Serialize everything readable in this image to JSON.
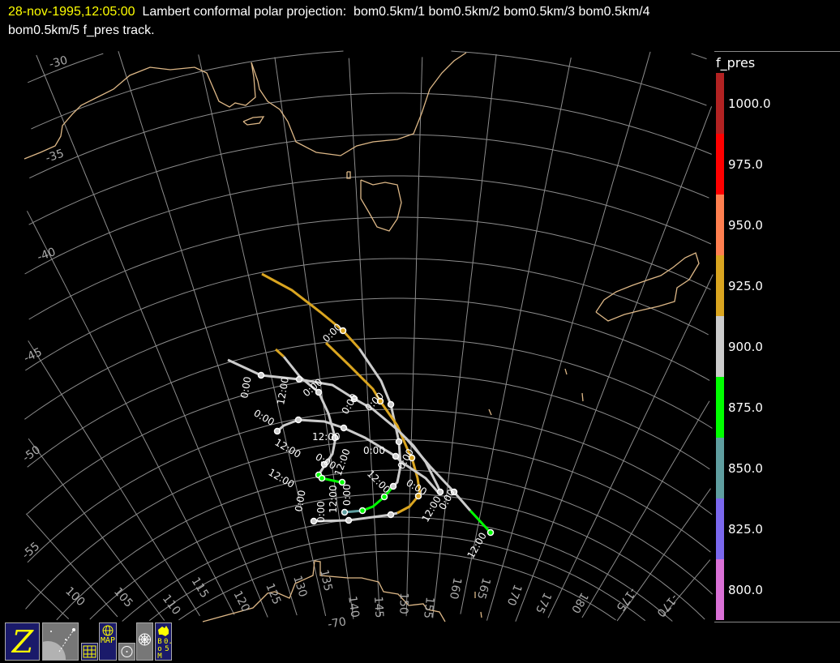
{
  "header": {
    "timestamp": "28-nov-1995,12:05:00",
    "title_line1": "  Lambert conformal polar projection:  bom0.5km/1 bom0.5km/2 bom0.5km/3 bom0.5km/4",
    "title_line2": "bom0.5km/5 f_pres track."
  },
  "legend": {
    "title": "f_pres",
    "levels": [
      {
        "label": "1000.0",
        "color": "#b22222"
      },
      {
        "label": "975.0",
        "color": "#ff0000"
      },
      {
        "label": "950.0",
        "color": "#ff7f50"
      },
      {
        "label": "925.0",
        "color": "#daa520"
      },
      {
        "label": "900.0",
        "color": "#cccccc"
      },
      {
        "label": "875.0",
        "color": "#00ff00"
      },
      {
        "label": "850.0",
        "color": "#5f9ea0"
      },
      {
        "label": "825.0",
        "color": "#7b68ee"
      },
      {
        "label": "800.0",
        "color": "#da70d6"
      }
    ]
  },
  "map": {
    "projection": "Lambert conformal polar",
    "coast_color": "#deb887",
    "grid_color": "#8c8c8c",
    "latitude_labels": [
      "-30",
      "-35",
      "-40",
      "-45",
      "-50",
      "-55",
      "-70"
    ],
    "longitude_labels": [
      "100",
      "105",
      "110",
      "115",
      "120",
      "125",
      "130",
      "135",
      "140",
      "145",
      "150",
      "155",
      "160",
      "165",
      "170",
      "175",
      "180",
      "-175",
      "-170"
    ],
    "track_time_labels": [
      "0:00",
      "0:00",
      "12:00",
      "0:00",
      "0:00",
      "12:00",
      "12:00",
      "0:00",
      "12:00",
      "12:00",
      "0:00",
      "0:00",
      "0:00",
      "12:00",
      "0:00",
      "12:00",
      "0:00",
      "0:00",
      "0:00",
      "0:00",
      "12:00",
      "0:00",
      "12:00"
    ]
  },
  "toolbar": {
    "zaxis_icon": "Z",
    "map_label": "MAP",
    "bom_label": "BoM",
    "bom_sub": "0.5"
  }
}
